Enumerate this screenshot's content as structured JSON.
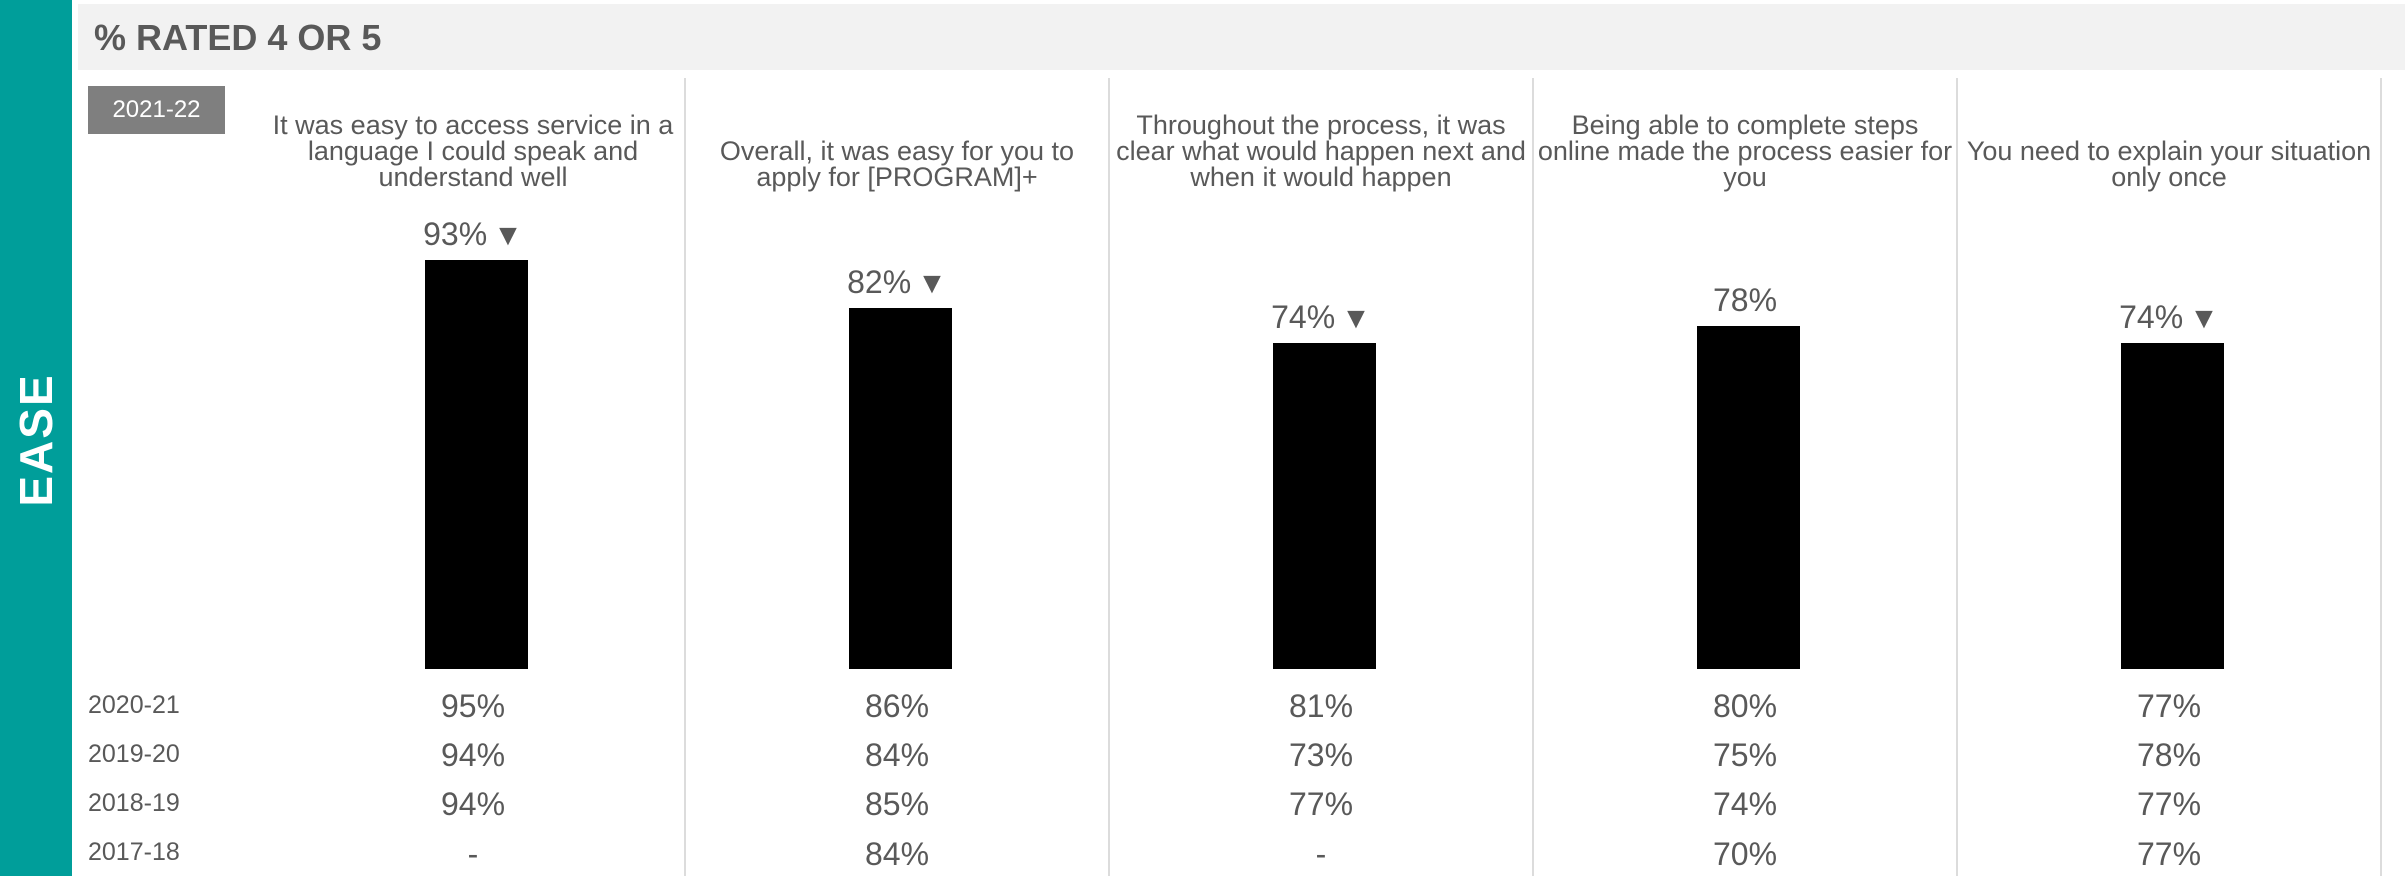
{
  "sidebar": {
    "label": "EASE"
  },
  "header": {
    "title": "% RATED 4 OR 5"
  },
  "current_year_badge": "2021-22",
  "history_years": [
    "2020-21",
    "2019-20",
    "2018-19",
    "2017-18"
  ],
  "chart_data": {
    "type": "bar",
    "title": "% RATED 4 OR 5",
    "ylim": [
      0,
      100
    ],
    "categories": [
      "It was easy to access service in a language I could speak and understand well",
      "Overall, it was easy for you to apply for [PROGRAM]+",
      "Throughout the process, it was clear what would happen next and when it would happen",
      "Being able to complete steps online made the process easier for you",
      "You need to explain your situation only once"
    ],
    "series": [
      {
        "name": "2021-22",
        "values": [
          93,
          82,
          74,
          78,
          74
        ],
        "labels": [
          "93%",
          "82%",
          "74%",
          "78%",
          "74%"
        ],
        "decline_marker": [
          true,
          true,
          true,
          false,
          true
        ]
      }
    ],
    "history": {
      "2020-21": [
        "95%",
        "86%",
        "81%",
        "80%",
        "77%"
      ],
      "2019-20": [
        "94%",
        "84%",
        "73%",
        "75%",
        "78%"
      ],
      "2018-19": [
        "94%",
        "85%",
        "77%",
        "74%",
        "77%"
      ],
      "2017-18": [
        "-",
        "84%",
        "-",
        "70%",
        "77%"
      ]
    },
    "colors": {
      "bar": "#000000",
      "accent": "#009e9a"
    },
    "decline_icon": "down-triangle-icon"
  }
}
